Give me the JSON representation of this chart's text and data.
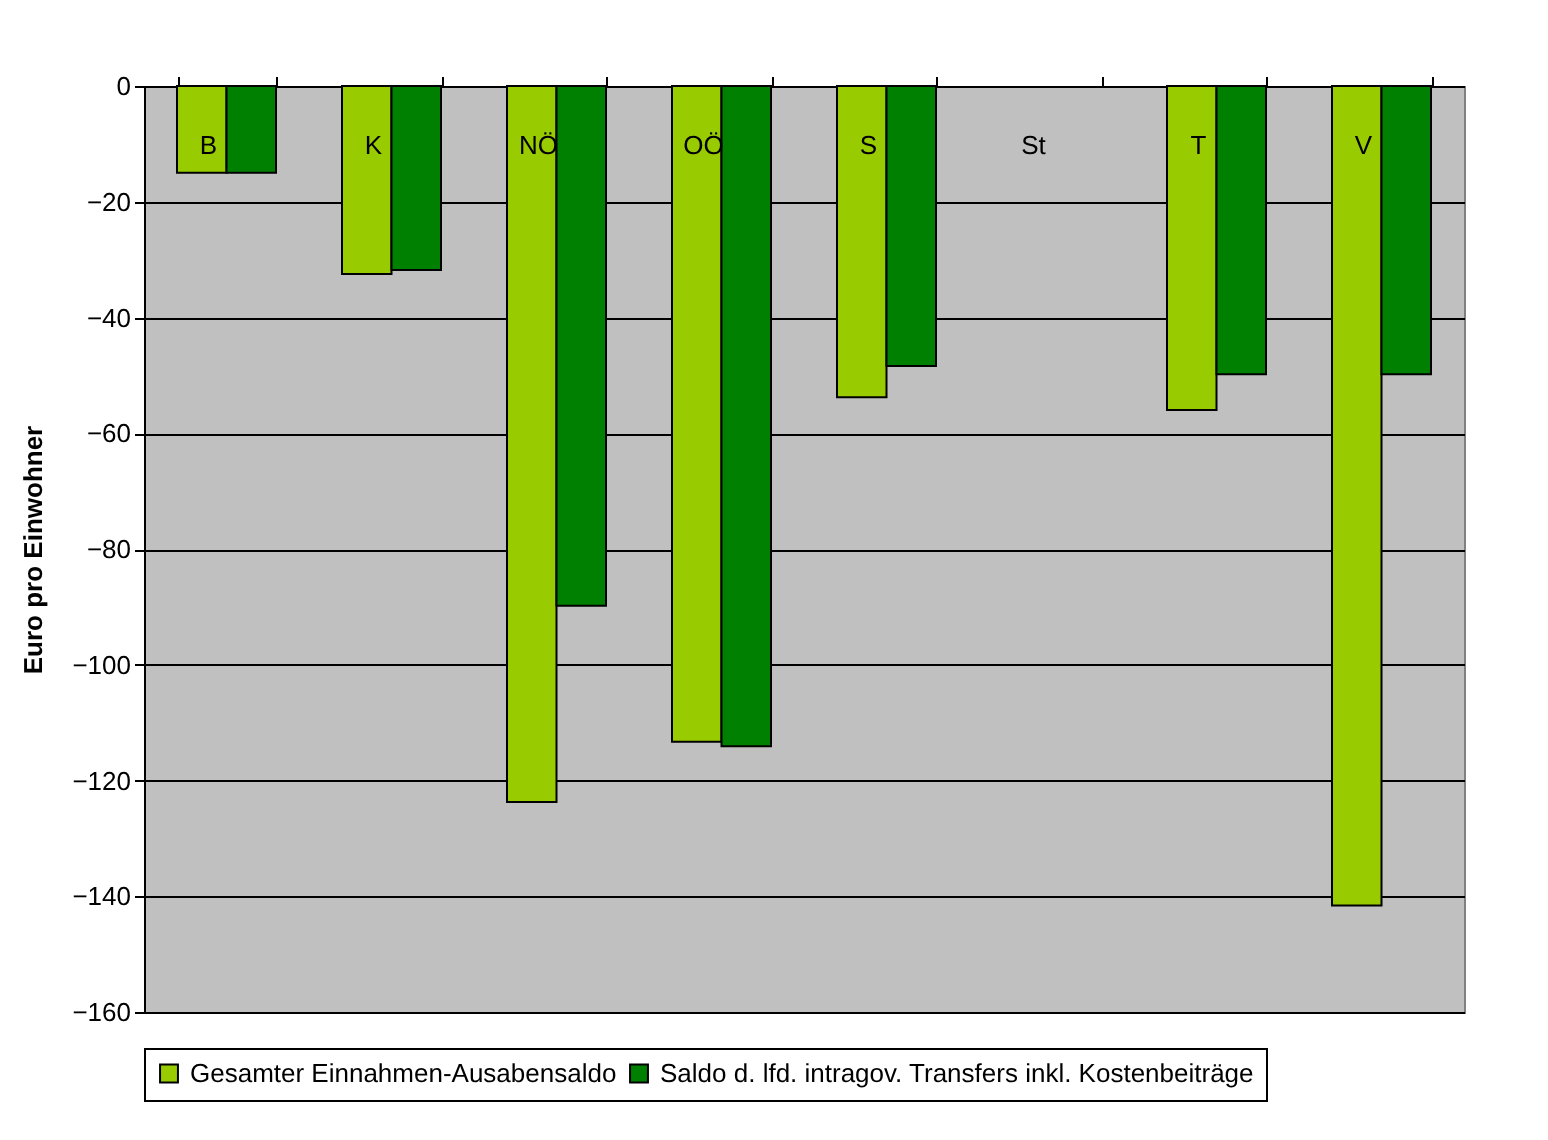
{
  "chart_data": {
    "type": "bar",
    "ylabel": "Euro pro Einwohner",
    "categories": [
      "B",
      "K",
      "NÖ",
      "OÖ",
      "S",
      "St",
      "T",
      "V"
    ],
    "series": [
      {
        "name": "Gesamter Einnahmen-Ausabensaldo",
        "color": "#99cc00",
        "values": [
          -15,
          -32.5,
          -123.7,
          -113.3,
          -53.8,
          null,
          -56,
          -141.6
        ]
      },
      {
        "name": "Saldo d. lfd. intragov. Transfers inkl. Kostenbeiträge",
        "color": "#008000",
        "values": [
          -15,
          -31.8,
          -89.8,
          -114.1,
          -48.4,
          null,
          -49.8,
          -49.8
        ]
      }
    ],
    "ylim": [
      -160,
      0
    ],
    "yticks": [
      -160,
      -140,
      -120,
      -100,
      -80,
      -60,
      -40,
      -20,
      0
    ],
    "grid": "y",
    "legend": "bottom"
  }
}
